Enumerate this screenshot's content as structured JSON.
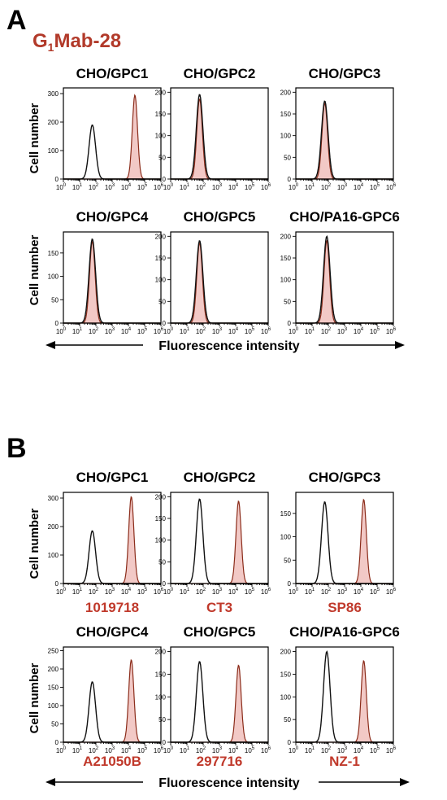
{
  "figure": {
    "panels": [
      {
        "letter": "A",
        "antibody": {
          "prefix": "G",
          "subscript": "1",
          "suffix": "Mab-28"
        },
        "x_axis_title": "Fluorescence intensity",
        "y_axis_label": "Cell number"
      },
      {
        "letter": "B",
        "x_axis_title": "Fluorescence intensity",
        "y_axis_label": "Cell number"
      }
    ]
  },
  "colors": {
    "sample": "#b23a2a",
    "sample_fill": "#f2c9c6",
    "control": "#111111",
    "label_red": "#c0392b"
  },
  "chart_data": [
    {
      "panel": "A",
      "type": "area",
      "title": "CHO/GPC1",
      "ylabel": "Cell number",
      "xscale": "log",
      "xlim": [
        1,
        1000000
      ],
      "ylim": [
        0,
        320
      ],
      "yticks": [
        0,
        100,
        200,
        300
      ],
      "control_peak": {
        "x": 60,
        "y": 190
      },
      "sample_peak": {
        "x": 25000,
        "y": 295
      }
    },
    {
      "panel": "A",
      "type": "area",
      "title": "CHO/GPC2",
      "xscale": "log",
      "xlim": [
        1,
        1000000
      ],
      "ylim": [
        0,
        210
      ],
      "yticks": [
        0,
        50,
        100,
        150,
        200
      ],
      "control_peak": {
        "x": 60,
        "y": 195
      },
      "sample_peak": {
        "x": 60,
        "y": 185
      }
    },
    {
      "panel": "A",
      "type": "area",
      "title": "CHO/GPC3",
      "xscale": "log",
      "xlim": [
        1,
        1000000
      ],
      "ylim": [
        0,
        210
      ],
      "yticks": [
        0,
        50,
        100,
        150,
        200
      ],
      "control_peak": {
        "x": 60,
        "y": 180
      },
      "sample_peak": {
        "x": 60,
        "y": 175
      }
    },
    {
      "panel": "A",
      "type": "area",
      "title": "CHO/GPC4",
      "ylabel": "Cell number",
      "xscale": "log",
      "xlim": [
        1,
        1000000
      ],
      "ylim": [
        0,
        195
      ],
      "yticks": [
        0,
        50,
        100,
        150
      ],
      "control_peak": {
        "x": 60,
        "y": 180
      },
      "sample_peak": {
        "x": 60,
        "y": 175
      }
    },
    {
      "panel": "A",
      "type": "area",
      "title": "CHO/GPC5",
      "xscale": "log",
      "xlim": [
        1,
        1000000
      ],
      "ylim": [
        0,
        210
      ],
      "yticks": [
        0,
        50,
        100,
        150,
        200
      ],
      "control_peak": {
        "x": 60,
        "y": 190
      },
      "sample_peak": {
        "x": 60,
        "y": 185
      }
    },
    {
      "panel": "A",
      "type": "area",
      "title": "CHO/PA16-GPC6",
      "xscale": "log",
      "xlim": [
        1,
        1000000
      ],
      "ylim": [
        0,
        210
      ],
      "yticks": [
        0,
        50,
        100,
        150,
        200
      ],
      "control_peak": {
        "x": 80,
        "y": 200
      },
      "sample_peak": {
        "x": 80,
        "y": 190
      }
    },
    {
      "panel": "B",
      "type": "area",
      "title": "CHO/GPC1",
      "antibody": "1019718",
      "ylabel": "Cell number",
      "xscale": "log",
      "xlim": [
        1,
        1000000
      ],
      "ylim": [
        0,
        320
      ],
      "yticks": [
        0,
        100,
        200,
        300
      ],
      "control_peak": {
        "x": 60,
        "y": 185
      },
      "sample_peak": {
        "x": 15000,
        "y": 305
      }
    },
    {
      "panel": "B",
      "type": "area",
      "title": "CHO/GPC2",
      "antibody": "CT3",
      "xscale": "log",
      "xlim": [
        1,
        1000000
      ],
      "ylim": [
        0,
        210
      ],
      "yticks": [
        0,
        50,
        100,
        150,
        200
      ],
      "control_peak": {
        "x": 60,
        "y": 195
      },
      "sample_peak": {
        "x": 15000,
        "y": 190
      }
    },
    {
      "panel": "B",
      "type": "area",
      "title": "CHO/GPC3",
      "antibody": "SP86",
      "xscale": "log",
      "xlim": [
        1,
        1000000
      ],
      "ylim": [
        0,
        195
      ],
      "yticks": [
        0,
        50,
        100,
        150
      ],
      "control_peak": {
        "x": 60,
        "y": 175
      },
      "sample_peak": {
        "x": 15000,
        "y": 180
      }
    },
    {
      "panel": "B",
      "type": "area",
      "title": "CHO/GPC4",
      "antibody": "A21050B",
      "ylabel": "Cell number",
      "xscale": "log",
      "xlim": [
        1,
        1000000
      ],
      "ylim": [
        0,
        260
      ],
      "yticks": [
        0,
        50,
        100,
        150,
        200,
        250
      ],
      "control_peak": {
        "x": 60,
        "y": 165
      },
      "sample_peak": {
        "x": 15000,
        "y": 225
      }
    },
    {
      "panel": "B",
      "type": "area",
      "title": "CHO/GPC5",
      "antibody": "297716",
      "xscale": "log",
      "xlim": [
        1,
        1000000
      ],
      "ylim": [
        0,
        210
      ],
      "yticks": [
        0,
        50,
        100,
        150,
        200
      ],
      "control_peak": {
        "x": 60,
        "y": 178
      },
      "sample_peak": {
        "x": 15000,
        "y": 170
      }
    },
    {
      "panel": "B",
      "type": "area",
      "title": "CHO/PA16-GPC6",
      "antibody": "NZ-1",
      "xscale": "log",
      "xlim": [
        1,
        1000000
      ],
      "ylim": [
        0,
        210
      ],
      "yticks": [
        0,
        50,
        100,
        150,
        200
      ],
      "control_peak": {
        "x": 80,
        "y": 200
      },
      "sample_peak": {
        "x": 15000,
        "y": 180
      }
    }
  ]
}
